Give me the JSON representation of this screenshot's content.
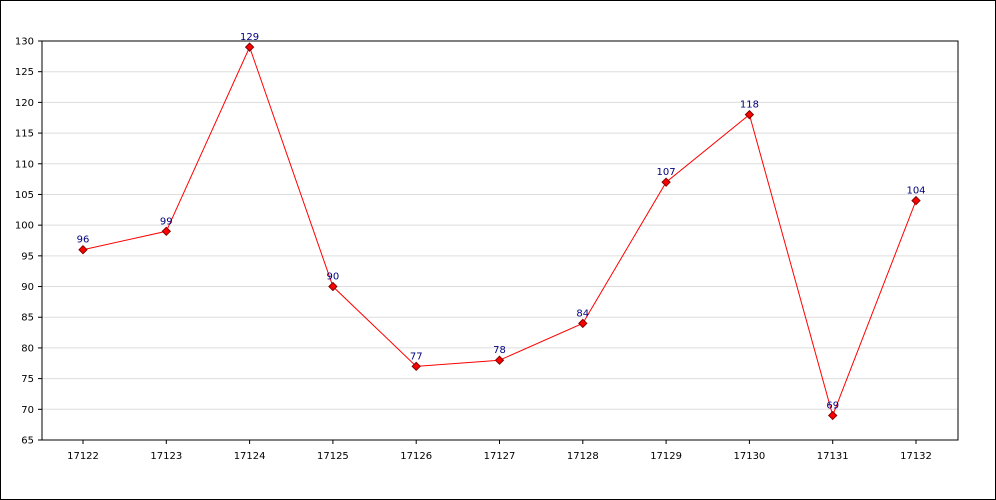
{
  "chart_data": {
    "type": "line",
    "title": "",
    "xlabel": "",
    "ylabel": "",
    "categories": [
      "17122",
      "17123",
      "17124",
      "17125",
      "17126",
      "17127",
      "17128",
      "17129",
      "17130",
      "17131",
      "17132"
    ],
    "series": [
      {
        "values": [
          96,
          99,
          129,
          90,
          77,
          78,
          84,
          107,
          118,
          69,
          104
        ]
      }
    ],
    "ylim": [
      65,
      130
    ],
    "ytick_step": 5,
    "grid": "horizontal",
    "legend": "none",
    "data_labels": true,
    "colors": {
      "line": "#ff0000",
      "marker_fill": "#ff0000",
      "marker_stroke": "#800000",
      "data_label": "#000080",
      "grid": "#dddddd",
      "axis": "#000000"
    }
  }
}
